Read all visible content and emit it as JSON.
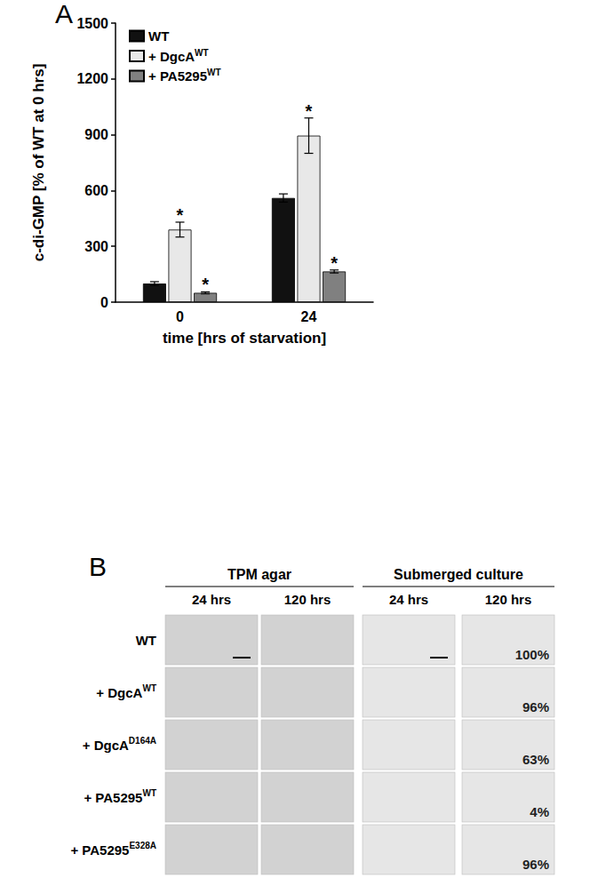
{
  "chart_data": {
    "type": "bar",
    "panel_label": "A",
    "xlabel": "time [hrs of starvation]",
    "ylabel": "c-di-GMP [% of WT at 0 hrs]",
    "categories": [
      "0",
      "24"
    ],
    "series": [
      {
        "name": "WT",
        "color": "#111111",
        "values": [
          100,
          560
        ],
        "errors": [
          10,
          22
        ]
      },
      {
        "name": "+ DgcA",
        "sup": "WT",
        "color": "#e8e8e8",
        "values": [
          390,
          895
        ],
        "errors": [
          40,
          95
        ],
        "marks": [
          "*",
          "*"
        ]
      },
      {
        "name": "+ PA5295",
        "sup": "WT",
        "color": "#808080",
        "values": [
          50,
          165
        ],
        "errors": [
          5,
          8
        ],
        "marks": [
          "*",
          "*"
        ]
      }
    ],
    "ylim": [
      0,
      1500
    ],
    "yticks": [
      0,
      300,
      600,
      900,
      1200,
      1500
    ],
    "grid": false,
    "legend": "upper left"
  },
  "panel_b": {
    "label": "B",
    "column_groups": [
      {
        "title": "TPM agar",
        "columns": [
          "24 hrs",
          "120 hrs"
        ]
      },
      {
        "title": "Submerged culture",
        "columns": [
          "24 hrs",
          "120 hrs"
        ]
      }
    ],
    "rows": [
      {
        "label": "WT",
        "percent": "100%"
      },
      {
        "label": "+ DgcA",
        "sup": "WT",
        "percent": "96%"
      },
      {
        "label": "+ DgcA",
        "sup": "D164A",
        "percent": "63%"
      },
      {
        "label": "+ PA5295",
        "sup": "WT",
        "percent": "4%"
      },
      {
        "label": "+ PA5295",
        "sup": "E328A",
        "percent": "96%"
      }
    ]
  }
}
